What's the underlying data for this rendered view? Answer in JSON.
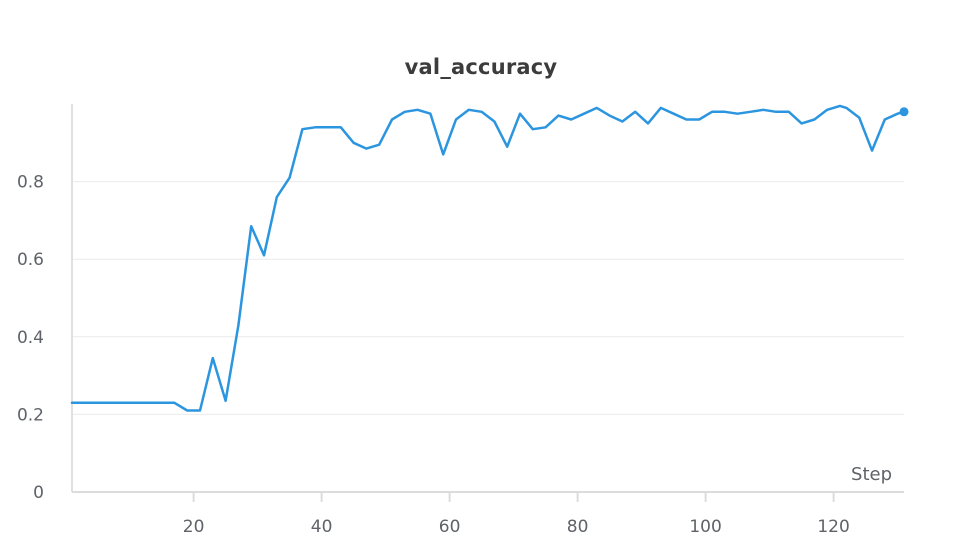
{
  "chart_data": {
    "type": "line",
    "title": "val_accuracy",
    "xlabel": "Step",
    "ylabel": "",
    "xlim": [
      1,
      131
    ],
    "ylim": [
      0,
      1.0
    ],
    "x_ticks": [
      20,
      40,
      60,
      80,
      100,
      120
    ],
    "y_ticks": [
      0,
      0.2,
      0.4,
      0.6,
      0.8
    ],
    "y_tick_labels": [
      "0",
      "0.2",
      "0.4",
      "0.6",
      "0.8"
    ],
    "x_tick_labels": [
      "20",
      "40",
      "60",
      "80",
      "100",
      "120"
    ],
    "grid": "horizontal",
    "line_color": "#2b95df",
    "series": [
      {
        "x": [
          1,
          3,
          5,
          7,
          9,
          11,
          13,
          15,
          17,
          19,
          21,
          23,
          25,
          27,
          29,
          31,
          33,
          35,
          37,
          39,
          41,
          43,
          45,
          47,
          49,
          51,
          53,
          55,
          57,
          59,
          61,
          63,
          65,
          67,
          69,
          71,
          73,
          75,
          77,
          79,
          81,
          83,
          85,
          87,
          89,
          91,
          93,
          95,
          97,
          99,
          101,
          103,
          105,
          107,
          109,
          111,
          113,
          115,
          117,
          119,
          121,
          122,
          124,
          126,
          128,
          130,
          131
        ],
        "values": [
          0.23,
          0.23,
          0.23,
          0.23,
          0.23,
          0.23,
          0.23,
          0.23,
          0.23,
          0.21,
          0.21,
          0.345,
          0.235,
          0.43,
          0.685,
          0.61,
          0.76,
          0.81,
          0.935,
          0.94,
          0.94,
          0.94,
          0.9,
          0.885,
          0.895,
          0.96,
          0.98,
          0.985,
          0.975,
          0.87,
          0.96,
          0.985,
          0.98,
          0.955,
          0.89,
          0.975,
          0.935,
          0.94,
          0.97,
          0.96,
          0.975,
          0.99,
          0.97,
          0.955,
          0.98,
          0.95,
          0.99,
          0.975,
          0.96,
          0.96,
          0.98,
          0.98,
          0.975,
          0.98,
          0.985,
          0.98,
          0.98,
          0.95,
          0.96,
          0.985,
          0.995,
          0.99,
          0.965,
          0.88,
          0.96,
          0.975,
          0.98
        ]
      }
    ]
  }
}
